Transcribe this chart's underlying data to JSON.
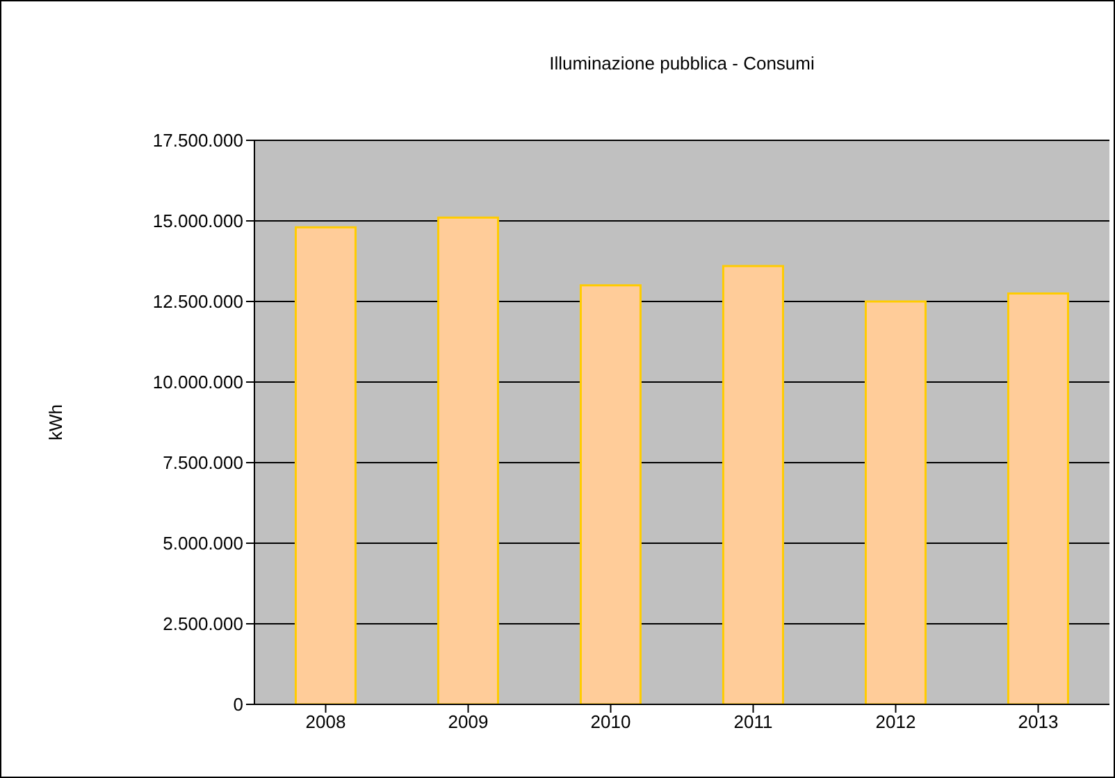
{
  "chart_data": {
    "type": "bar",
    "title": "Illuminazione pubblica - Consumi",
    "ylabel": "kWh",
    "categories": [
      "2008",
      "2009",
      "2010",
      "2011",
      "2012",
      "2013"
    ],
    "values": [
      14800000,
      15100000,
      13000000,
      13600000,
      12500000,
      12750000
    ],
    "color": "#ffcc99",
    "ylim": [
      0,
      17500000
    ],
    "yticks": [
      {
        "value": 0,
        "label": "0"
      },
      {
        "value": 2500000,
        "label": "2.500.000"
      },
      {
        "value": 5000000,
        "label": "5.000.000"
      },
      {
        "value": 7500000,
        "label": "7.500.000"
      },
      {
        "value": 10000000,
        "label": "10.000.000"
      },
      {
        "value": 12500000,
        "label": "12.500.000"
      },
      {
        "value": 15000000,
        "label": "15.000.000"
      },
      {
        "value": 17500000,
        "label": "17.500.000"
      }
    ],
    "grid": "y",
    "legend": false
  }
}
